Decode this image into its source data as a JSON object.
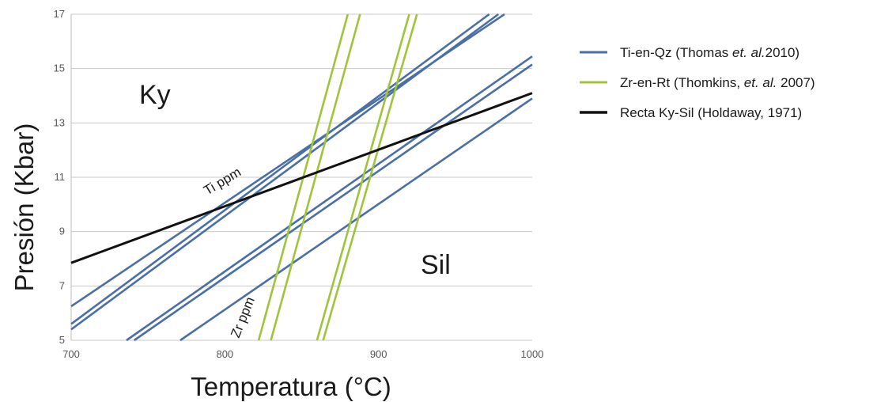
{
  "chart_data": {
    "type": "line",
    "title": "",
    "xlabel": "Temperatura (°C)",
    "ylabel": "Presión (Kbar)",
    "xlim": [
      700,
      1000
    ],
    "ylim": [
      5,
      17
    ],
    "x_ticks": [
      "700",
      "800",
      "900",
      "1000"
    ],
    "y_ticks": [
      "5",
      "7",
      "9",
      "11",
      "13",
      "15",
      "17"
    ],
    "grid": "horizontal",
    "legend_position": "right",
    "region_labels": {
      "ky": "Ky",
      "sil": "Sil"
    },
    "annotations": {
      "ti": "Ti ppm",
      "zr": "Zr ppm"
    },
    "colors": {
      "ti": "#4a6fa5",
      "zr": "#9fc43c",
      "ky_sil": "#111111"
    },
    "series": [
      {
        "name": "Ti-en-Qz (Thomas et. al.2010)",
        "group": "ti",
        "legend_parts": [
          "Ti-en-Qz (Thomas ",
          "et. al.",
          "2010)"
        ],
        "lines": [
          {
            "x": [
              700,
              982
            ],
            "y": [
              6.25,
              17.0
            ]
          },
          {
            "x": [
              700,
              972
            ],
            "y": [
              5.6,
              17.0
            ]
          },
          {
            "x": [
              700,
              978
            ],
            "y": [
              5.4,
              17.0
            ]
          },
          {
            "x": [
              736,
              1000
            ],
            "y": [
              5.0,
              15.45
            ]
          },
          {
            "x": [
              741,
              1000
            ],
            "y": [
              5.0,
              15.15
            ]
          },
          {
            "x": [
              771,
              1000
            ],
            "y": [
              5.0,
              13.9
            ]
          }
        ]
      },
      {
        "name": "Zr-en-Rt (Thomkins, et. al. 2007)",
        "group": "zr",
        "legend_parts": [
          "Zr-en-Rt (Thomkins, ",
          "et. al.",
          " 2007)"
        ],
        "lines": [
          {
            "x": [
              822,
              880
            ],
            "y": [
              5.0,
              17.0
            ]
          },
          {
            "x": [
              830,
              888
            ],
            "y": [
              5.0,
              17.0
            ]
          },
          {
            "x": [
              860,
              920
            ],
            "y": [
              5.0,
              17.0
            ]
          },
          {
            "x": [
              864,
              925
            ],
            "y": [
              5.0,
              17.0
            ]
          }
        ]
      },
      {
        "name": "Recta Ky-Sil (Holdaway, 1971)",
        "group": "ky_sil",
        "legend_parts": [
          "Recta Ky-Sil (Holdaway, 1971)",
          "",
          ""
        ],
        "lines": [
          {
            "x": [
              700,
              1000
            ],
            "y": [
              7.85,
              14.1
            ]
          }
        ]
      }
    ]
  }
}
